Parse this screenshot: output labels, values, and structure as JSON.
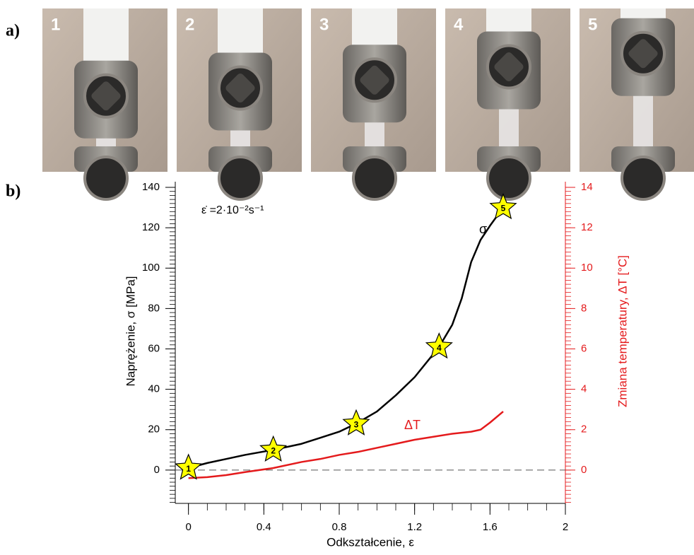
{
  "panels": {
    "a": "a)",
    "b": "b)"
  },
  "photos": [
    {
      "label": "1"
    },
    {
      "label": "2"
    },
    {
      "label": "3"
    },
    {
      "label": "4"
    },
    {
      "label": "5"
    }
  ],
  "chart_data": {
    "type": "line",
    "x_label": "Odkształcenie, ε",
    "y_label": "Naprężenie, σ [MPa]",
    "y2_label": "Zmiana temperatury, ΔT [°C]",
    "annotation": "ε̇ =2·10⁻²s⁻¹",
    "xlim": [
      -0.07,
      2.0
    ],
    "xticks": [
      0,
      0.4,
      0.8,
      1.2,
      1.6,
      2
    ],
    "xminor": 0.1,
    "ylim": [
      -16.5,
      140
    ],
    "yticks": [
      0,
      20,
      40,
      60,
      80,
      100,
      120,
      140
    ],
    "yminor": 2,
    "y2lim": [
      -1.65,
      14
    ],
    "y2ticks": [
      0,
      2,
      4,
      6,
      8,
      10,
      12,
      14
    ],
    "y2minor": 0.2,
    "y2color": "#e41a1c",
    "zero_line": true,
    "series": [
      {
        "name": "σ",
        "color": "#000000",
        "x": [
          0,
          0.1,
          0.2,
          0.3,
          0.45,
          0.6,
          0.7,
          0.8,
          0.89,
          1.0,
          1.1,
          1.2,
          1.33,
          1.4,
          1.45,
          1.5,
          1.55,
          1.6,
          1.67
        ],
        "values": [
          1,
          3.5,
          5.5,
          7.5,
          10,
          13,
          16,
          19,
          23,
          29,
          37,
          46,
          61,
          72,
          85,
          103,
          114,
          121,
          130
        ]
      },
      {
        "name": "ΔT",
        "color": "#e41a1c",
        "axis": "y2",
        "x": [
          0,
          0.1,
          0.2,
          0.3,
          0.45,
          0.6,
          0.7,
          0.8,
          0.9,
          1.0,
          1.1,
          1.2,
          1.3,
          1.4,
          1.5,
          1.55,
          1.6,
          1.67
        ],
        "values": [
          -0.4,
          -0.35,
          -0.25,
          -0.1,
          0.1,
          0.4,
          0.55,
          0.75,
          0.9,
          1.1,
          1.3,
          1.5,
          1.65,
          1.8,
          1.9,
          2.0,
          2.35,
          2.9
        ]
      }
    ],
    "markers": {
      "color": "#ffff00",
      "x": [
        0,
        0.45,
        0.89,
        1.33,
        1.67
      ],
      "y": [
        1,
        10,
        23,
        61,
        130
      ],
      "labels": [
        "1",
        "2",
        "3",
        "4",
        "5"
      ]
    }
  }
}
